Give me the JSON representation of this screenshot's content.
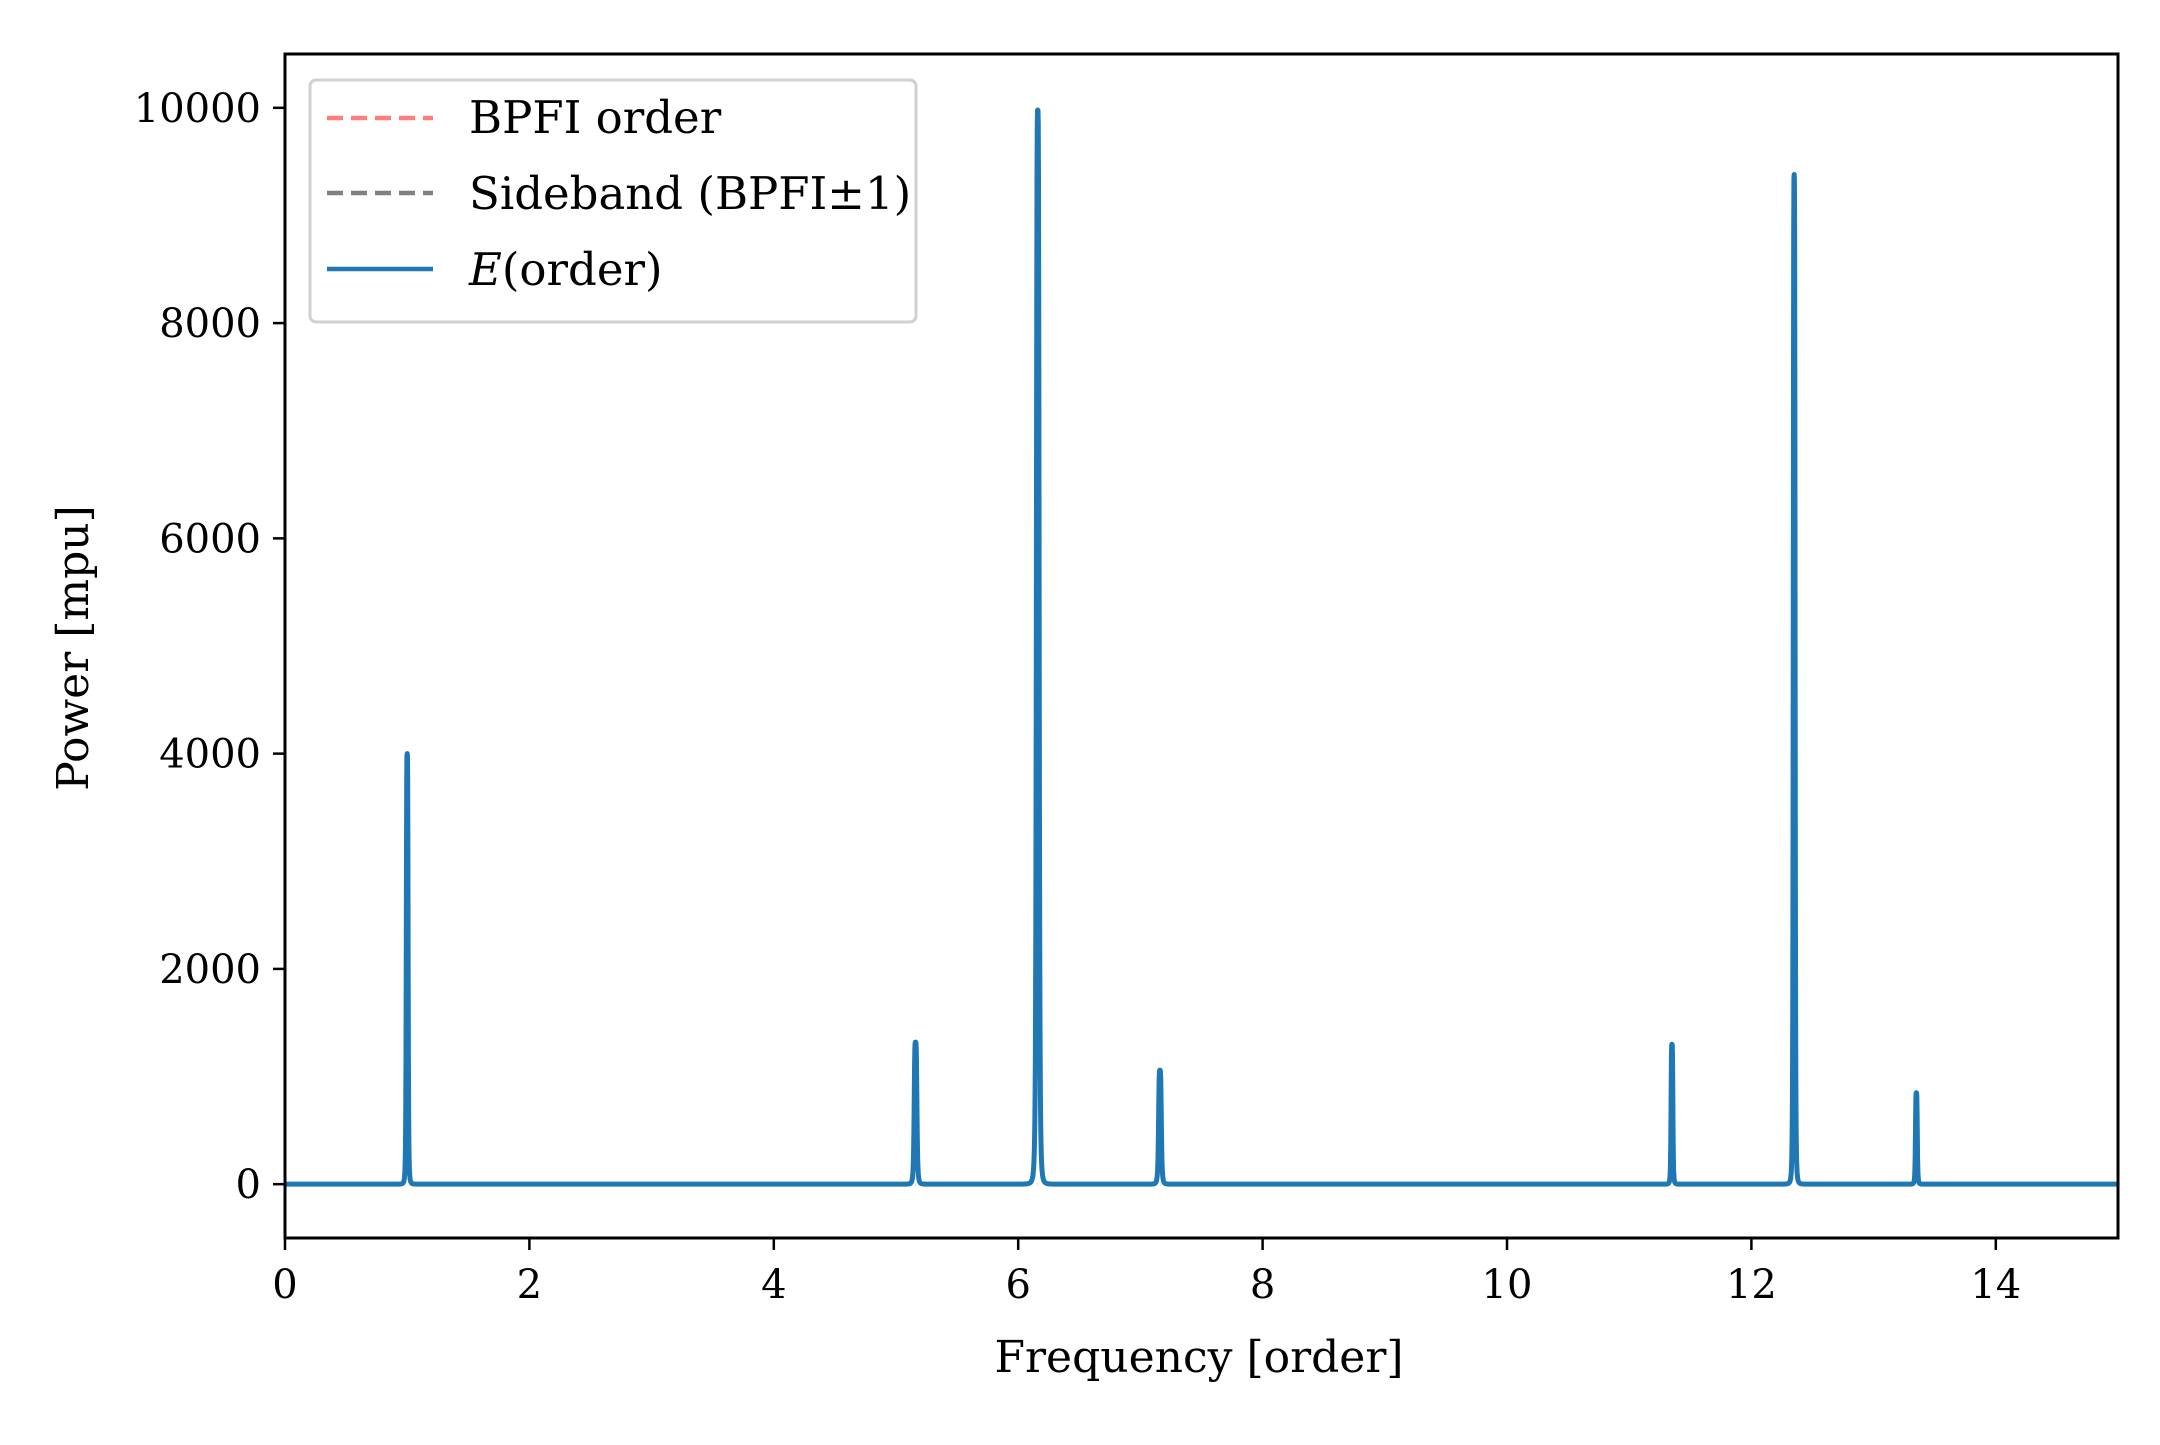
{
  "chart_data": {
    "type": "line",
    "title": "",
    "xlabel": "Frequency [order]",
    "ylabel": "Power [mpu]",
    "xlim": [
      0,
      15
    ],
    "ylim": [
      -500,
      10500
    ],
    "xticks": [
      0,
      2,
      4,
      6,
      8,
      10,
      12,
      14
    ],
    "xtick_labels": [
      "0",
      "2",
      "4",
      "6",
      "8",
      "10",
      "12",
      "14"
    ],
    "yticks": [
      0,
      2000,
      4000,
      6000,
      8000,
      10000
    ],
    "ytick_labels": [
      "0",
      "2000",
      "4000",
      "6000",
      "8000",
      "10000"
    ],
    "grid": false,
    "legend_position": "top-left",
    "series": [
      {
        "name": "BPFI order",
        "style": "dashed",
        "color": "#ff7f7f",
        "x": [
          6.16,
          6.16
        ],
        "y": [
          0,
          0
        ]
      },
      {
        "name": "Sideband (BPFI±1)",
        "style": "dashed",
        "color": "#808080",
        "x": [
          5.16,
          5.16,
          7.16,
          7.16
        ],
        "y": [
          0,
          0,
          0,
          0
        ]
      },
      {
        "name": "E(order)",
        "legend_name_italic": "E",
        "legend_name_rest": "(order)",
        "style": "solid",
        "color": "#1f77b4",
        "peaks": [
          {
            "x": 1.0,
            "y": 4000,
            "width": 0.02
          },
          {
            "x": 5.16,
            "y": 1320,
            "width": 0.03
          },
          {
            "x": 6.16,
            "y": 9980,
            "width": 0.03
          },
          {
            "x": 7.16,
            "y": 1060,
            "width": 0.03
          },
          {
            "x": 11.35,
            "y": 1300,
            "width": 0.02
          },
          {
            "x": 12.35,
            "y": 9380,
            "width": 0.02
          },
          {
            "x": 13.35,
            "y": 850,
            "width": 0.02
          }
        ]
      }
    ]
  }
}
